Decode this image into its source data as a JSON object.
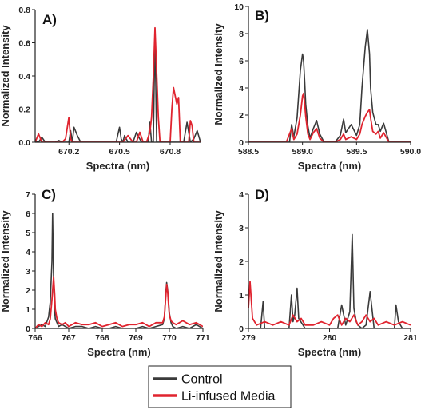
{
  "legend": {
    "entries": [
      {
        "label": "Control",
        "color": "#3a3a3a"
      },
      {
        "label": "Li-infused Media",
        "color": "#e0242f"
      }
    ]
  },
  "chart_data": [
    {
      "panel_label": "A)",
      "type": "line",
      "xlabel": "Spectra (nm)",
      "ylabel": "Normalized Intensity",
      "xlim": [
        670.0,
        670.98
      ],
      "ylim": [
        0,
        0.8
      ],
      "xticks": [
        670.2,
        670.5,
        670.8
      ],
      "xtick_labels": [
        "670.2",
        "670.5",
        "670.8"
      ],
      "yticks": [
        0,
        0.2,
        0.4,
        0.6,
        0.8
      ],
      "ytick_labels": [
        "0.0",
        "0.2",
        "0.4",
        "0.6",
        "0.8"
      ],
      "series": [
        {
          "name": "Control",
          "x": [
            670.0,
            670.02,
            670.04,
            670.06,
            670.08,
            670.1,
            670.12,
            670.14,
            670.16,
            670.18,
            670.2,
            670.21,
            670.22,
            670.23,
            670.25,
            670.27,
            670.3,
            670.35,
            670.4,
            670.45,
            670.48,
            670.5,
            670.51,
            670.52,
            670.53,
            670.55,
            670.58,
            670.6,
            670.63,
            670.65,
            670.67,
            670.68,
            670.69,
            670.7,
            670.71,
            670.72,
            670.74,
            670.76,
            670.78,
            670.8,
            670.82,
            670.84,
            670.86,
            670.88,
            670.9,
            670.92,
            670.94,
            670.96,
            670.98
          ],
          "y": [
            0.01,
            0.0,
            0.03,
            0.0,
            0.0,
            0.0,
            0.0,
            0.01,
            0.0,
            0.0,
            0.0,
            0.07,
            0.0,
            0.09,
            0.04,
            0.0,
            0.0,
            0.0,
            0.0,
            0.0,
            0.0,
            0.09,
            0.02,
            0.0,
            0.04,
            0.0,
            0.0,
            0.06,
            0.0,
            0.0,
            0.0,
            0.12,
            0.0,
            0.0,
            0.66,
            0.0,
            0.0,
            0.0,
            0.0,
            0.0,
            0.0,
            0.0,
            0.0,
            0.0,
            0.12,
            0.0,
            0.02,
            0.07,
            0.0
          ]
        },
        {
          "name": "Li-infused Media",
          "x": [
            670.0,
            670.02,
            670.04,
            670.06,
            670.08,
            670.1,
            670.12,
            670.14,
            670.16,
            670.18,
            670.2,
            670.21,
            670.22,
            670.25,
            670.3,
            670.4,
            670.48,
            670.5,
            670.52,
            670.55,
            670.58,
            670.6,
            670.62,
            670.64,
            670.66,
            670.68,
            670.69,
            670.7,
            670.71,
            670.72,
            670.73,
            670.74,
            670.76,
            670.78,
            670.79,
            670.8,
            670.81,
            670.82,
            670.83,
            670.84,
            670.85,
            670.86,
            670.88,
            670.9,
            670.91,
            670.92,
            670.93,
            670.94,
            670.96,
            670.98
          ],
          "y": [
            0.0,
            0.05,
            0.0,
            0.0,
            0.0,
            0.0,
            0.0,
            0.0,
            0.0,
            0.02,
            0.15,
            0.02,
            0.0,
            0.0,
            0.0,
            0.0,
            0.0,
            0.0,
            0.0,
            0.04,
            0.0,
            0.0,
            0.06,
            0.0,
            0.0,
            0.06,
            0.15,
            0.39,
            0.69,
            0.42,
            0.15,
            0.0,
            0.0,
            0.0,
            0.0,
            0.0,
            0.2,
            0.33,
            0.28,
            0.23,
            0.27,
            0.0,
            0.0,
            0.0,
            0.0,
            0.13,
            0.1,
            0.0,
            0.0,
            0.0
          ]
        }
      ]
    },
    {
      "panel_label": "B)",
      "type": "line",
      "xlabel": "Spectra (nm)",
      "ylabel": "Normalized Intensity",
      "xlim": [
        588.5,
        590.0
      ],
      "ylim": [
        0,
        10
      ],
      "xticks": [
        588.5,
        589.0,
        589.5,
        590.0
      ],
      "xtick_labels": [
        "588.5",
        "589.0",
        "589.5",
        "590.0"
      ],
      "yticks": [
        0,
        2,
        4,
        6,
        8,
        10
      ],
      "ytick_labels": [
        "0",
        "2",
        "4",
        "6",
        "8",
        "10"
      ],
      "series": [
        {
          "name": "Control",
          "x": [
            588.5,
            588.6,
            588.7,
            588.8,
            588.85,
            588.88,
            588.9,
            588.92,
            588.95,
            588.98,
            589.0,
            589.01,
            589.02,
            589.03,
            589.05,
            589.07,
            589.1,
            589.13,
            589.16,
            589.2,
            589.25,
            589.3,
            589.35,
            589.38,
            589.4,
            589.45,
            589.5,
            589.53,
            589.55,
            589.58,
            589.6,
            589.62,
            589.63,
            589.65,
            589.68,
            589.7,
            589.72,
            589.75,
            589.8,
            589.85,
            589.9,
            590.0
          ],
          "y": [
            0,
            0,
            0,
            0,
            0,
            0,
            1.3,
            0.4,
            1.8,
            5.3,
            6.5,
            6.0,
            4.5,
            2.8,
            1.2,
            0.3,
            1.0,
            1.6,
            0.6,
            0,
            0,
            0,
            0.5,
            1.7,
            0.7,
            1.3,
            0.5,
            1.3,
            4.0,
            7.0,
            8.3,
            6.5,
            4.0,
            2.2,
            1.3,
            1.3,
            0.8,
            1.4,
            0,
            0,
            0,
            0
          ]
        },
        {
          "name": "Li-infused Media",
          "x": [
            588.5,
            588.8,
            588.85,
            588.88,
            588.9,
            588.92,
            588.95,
            588.98,
            589.0,
            589.01,
            589.02,
            589.03,
            589.05,
            589.07,
            589.1,
            589.13,
            589.16,
            589.2,
            589.3,
            589.35,
            589.38,
            589.4,
            589.45,
            589.5,
            589.53,
            589.55,
            589.58,
            589.6,
            589.62,
            589.63,
            589.65,
            589.68,
            589.7,
            589.72,
            589.75,
            589.8,
            589.9,
            590.0
          ],
          "y": [
            0,
            0,
            0,
            0.6,
            1.0,
            0.2,
            0.6,
            2.0,
            3.4,
            3.6,
            2.8,
            1.9,
            0.6,
            0.2,
            0.7,
            1.0,
            0.3,
            0,
            0,
            0.2,
            0.6,
            0.2,
            0.4,
            0.2,
            0.6,
            1.3,
            1.9,
            2.2,
            2.4,
            1.8,
            0.8,
            0.6,
            0.8,
            0.3,
            0.7,
            0,
            0,
            0
          ]
        }
      ]
    },
    {
      "panel_label": "C)",
      "type": "line",
      "xlabel": "Spectra (nm)",
      "ylabel": "Normalized Intensity",
      "xlim": [
        766,
        771
      ],
      "ylim": [
        0,
        7
      ],
      "xticks": [
        766,
        767,
        768,
        769,
        770,
        771
      ],
      "xtick_labels": [
        "766",
        "767",
        "768",
        "769",
        "770",
        "771"
      ],
      "yticks": [
        0,
        1,
        2,
        3,
        4,
        5,
        6,
        7
      ],
      "ytick_labels": [
        "0",
        "1",
        "2",
        "3",
        "4",
        "5",
        "6",
        "7"
      ],
      "series": [
        {
          "name": "Control",
          "x": [
            766.0,
            766.1,
            766.2,
            766.3,
            766.4,
            766.45,
            766.5,
            766.52,
            766.55,
            766.58,
            766.6,
            766.65,
            766.7,
            766.8,
            766.9,
            767.0,
            767.2,
            767.4,
            767.6,
            767.8,
            768.0,
            768.2,
            768.4,
            768.6,
            768.8,
            769.0,
            769.2,
            769.4,
            769.6,
            769.8,
            769.85,
            769.9,
            769.92,
            769.95,
            769.98,
            770.0,
            770.05,
            770.1,
            770.2,
            770.4,
            770.6,
            770.8,
            771.0
          ],
          "y": [
            0,
            0.1,
            0.2,
            0.1,
            0.6,
            1.4,
            3.5,
            6.0,
            2.5,
            0.9,
            0.5,
            0.3,
            0.1,
            0.2,
            0.1,
            0,
            0.1,
            0.1,
            0,
            0.1,
            0,
            0,
            0.1,
            0,
            0,
            0,
            0.1,
            0,
            0.1,
            0.2,
            0.5,
            2.0,
            2.4,
            2.0,
            1.3,
            0.8,
            0.3,
            0.1,
            0,
            0.1,
            0,
            0.2,
            0
          ]
        },
        {
          "name": "Li-infused Media",
          "x": [
            766.0,
            766.1,
            766.2,
            766.3,
            766.4,
            766.45,
            766.5,
            766.55,
            766.58,
            766.6,
            766.65,
            766.7,
            766.8,
            766.9,
            767.0,
            767.2,
            767.4,
            767.6,
            767.8,
            768.0,
            768.2,
            768.4,
            768.6,
            768.8,
            769.0,
            769.2,
            769.4,
            769.6,
            769.8,
            769.85,
            769.9,
            769.92,
            769.95,
            769.98,
            770.0,
            770.05,
            770.1,
            770.2,
            770.4,
            770.6,
            770.8,
            771.0
          ],
          "y": [
            0,
            0.2,
            0.1,
            0.3,
            0.2,
            0.5,
            1.5,
            2.7,
            1.8,
            1.0,
            0.5,
            0.3,
            0.2,
            0.3,
            0.1,
            0.3,
            0.2,
            0.2,
            0.3,
            0.1,
            0.2,
            0.3,
            0.1,
            0.2,
            0.2,
            0.3,
            0.1,
            0.3,
            0.3,
            0.6,
            1.8,
            2.3,
            1.9,
            1.1,
            0.7,
            0.4,
            0.3,
            0.2,
            0.4,
            0.2,
            0.3,
            0.1
          ]
        }
      ]
    },
    {
      "panel_label": "D)",
      "type": "line",
      "xlabel": "Spectra (nm)",
      "ylabel": "Normalized Intensity",
      "xlim": [
        279,
        281
      ],
      "ylim": [
        0,
        4
      ],
      "xticks": [
        279,
        280,
        281
      ],
      "xtick_labels": [
        "279",
        "280",
        "281"
      ],
      "yticks": [
        0,
        1,
        2,
        3,
        4
      ],
      "ytick_labels": [
        "0",
        "1",
        "2",
        "3",
        "4"
      ],
      "series": [
        {
          "name": "Control",
          "x": [
            279.0,
            279.05,
            279.1,
            279.15,
            279.18,
            279.2,
            279.3,
            279.4,
            279.5,
            279.53,
            279.55,
            279.57,
            279.6,
            279.62,
            279.7,
            279.8,
            279.9,
            280.0,
            280.1,
            280.15,
            280.2,
            280.25,
            280.28,
            280.3,
            280.33,
            280.35,
            280.4,
            280.45,
            280.5,
            280.55,
            280.6,
            280.7,
            280.8,
            280.82,
            280.85,
            280.9,
            281.0
          ],
          "y": [
            0,
            0,
            0,
            0,
            0.8,
            0,
            0,
            0,
            0,
            1.0,
            0.2,
            0.4,
            1.2,
            0.3,
            0,
            0,
            0,
            0,
            0,
            0.7,
            0.1,
            0.5,
            2.8,
            0.6,
            0.2,
            0.1,
            0,
            0.1,
            1.1,
            0,
            0,
            0,
            0,
            0.7,
            0.2,
            0,
            0
          ]
        },
        {
          "name": "Li-infused Media",
          "x": [
            279.0,
            279.02,
            279.05,
            279.1,
            279.2,
            279.3,
            279.4,
            279.5,
            279.55,
            279.6,
            279.65,
            279.7,
            279.8,
            279.9,
            280.0,
            280.05,
            280.1,
            280.15,
            280.2,
            280.25,
            280.3,
            280.35,
            280.4,
            280.45,
            280.5,
            280.55,
            280.6,
            280.7,
            280.8,
            280.9,
            281.0
          ],
          "y": [
            0.6,
            1.4,
            0.3,
            0.1,
            0.2,
            0.1,
            0.2,
            0.1,
            0.4,
            0.2,
            0.3,
            0.1,
            0.1,
            0.2,
            0.1,
            0.3,
            0.4,
            0.1,
            0.3,
            0.2,
            0.4,
            0.1,
            0.2,
            0.4,
            0.2,
            0.3,
            0.1,
            0.2,
            0.1,
            0.2,
            0.1
          ]
        }
      ]
    }
  ]
}
